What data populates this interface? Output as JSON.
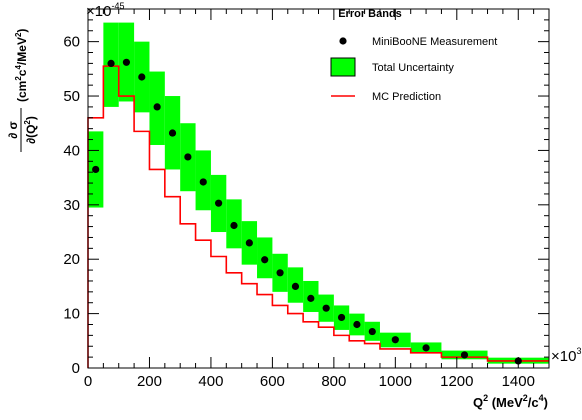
{
  "chart_data": {
    "type": "line",
    "title": "",
    "xlabel": {
      "base": "Q",
      "sup": "2",
      "unit_open": " (MeV",
      "unit_sup1": "2",
      "unit_mid": "/c",
      "unit_sup2": "4",
      "unit_close": ")"
    },
    "ylabel": {
      "frac_num": "∂ σ",
      "frac_den_open": "∂(Q",
      "frac_den_sup": "2",
      "frac_den_close": ")",
      "unit_open": " (cm",
      "unit_sup1": "2",
      "unit_mid1": "c",
      "unit_sup2": "4",
      "unit_mid2": "/MeV",
      "unit_sup3": "2",
      "unit_close": ")"
    },
    "x_exponent": {
      "base": "×10",
      "sup": "3"
    },
    "y_exponent": {
      "base": "×10",
      "sup": "-45"
    },
    "xlim": [
      0,
      1500
    ],
    "ylim": [
      0,
      66
    ],
    "x_ticks": [
      0,
      200,
      400,
      600,
      800,
      1000,
      1200,
      1400
    ],
    "y_ticks": [
      0,
      10,
      20,
      30,
      40,
      50,
      60
    ],
    "legend": {
      "title": "Error Bands",
      "position": "top-right",
      "entries": [
        "MiniBooNE Measurement",
        "Total Uncertainty",
        "MC Prediction"
      ]
    },
    "colors": {
      "band": "#00ff00",
      "mc": "#ff0000",
      "points": "#000000",
      "frame": "#000000"
    },
    "bins": [
      {
        "lo": 0,
        "hi": 50,
        "data": 36.5,
        "band_lo": 29.5,
        "band_hi": 43.5,
        "mc": 46.0
      },
      {
        "lo": 50,
        "hi": 100,
        "data": 56.0,
        "band_lo": 48.0,
        "band_hi": 63.5,
        "mc": 55.5
      },
      {
        "lo": 100,
        "hi": 150,
        "data": 56.2,
        "band_lo": 49.0,
        "band_hi": 63.5,
        "mc": 50.0
      },
      {
        "lo": 150,
        "hi": 200,
        "data": 53.5,
        "band_lo": 47.0,
        "band_hi": 60.0,
        "mc": 43.5
      },
      {
        "lo": 200,
        "hi": 250,
        "data": 48.0,
        "band_lo": 41.0,
        "band_hi": 54.5,
        "mc": 36.5
      },
      {
        "lo": 250,
        "hi": 300,
        "data": 43.2,
        "band_lo": 36.5,
        "band_hi": 50.0,
        "mc": 31.5
      },
      {
        "lo": 300,
        "hi": 350,
        "data": 38.8,
        "band_lo": 32.5,
        "band_hi": 45.0,
        "mc": 26.5
      },
      {
        "lo": 350,
        "hi": 400,
        "data": 34.2,
        "band_lo": 29.0,
        "band_hi": 40.0,
        "mc": 23.5
      },
      {
        "lo": 400,
        "hi": 450,
        "data": 30.3,
        "band_lo": 25.0,
        "band_hi": 35.5,
        "mc": 20.5
      },
      {
        "lo": 450,
        "hi": 500,
        "data": 26.2,
        "band_lo": 22.0,
        "band_hi": 31.0,
        "mc": 17.5
      },
      {
        "lo": 500,
        "hi": 550,
        "data": 23.0,
        "band_lo": 19.0,
        "band_hi": 27.0,
        "mc": 15.5
      },
      {
        "lo": 550,
        "hi": 600,
        "data": 19.9,
        "band_lo": 16.5,
        "band_hi": 24.0,
        "mc": 13.5
      },
      {
        "lo": 600,
        "hi": 650,
        "data": 17.5,
        "band_lo": 14.0,
        "band_hi": 21.0,
        "mc": 11.5
      },
      {
        "lo": 650,
        "hi": 700,
        "data": 15.0,
        "band_lo": 12.0,
        "band_hi": 18.5,
        "mc": 10.0
      },
      {
        "lo": 700,
        "hi": 750,
        "data": 12.8,
        "band_lo": 10.3,
        "band_hi": 16.0,
        "mc": 8.5
      },
      {
        "lo": 750,
        "hi": 800,
        "data": 11.0,
        "band_lo": 8.5,
        "band_hi": 13.5,
        "mc": 7.5
      },
      {
        "lo": 800,
        "hi": 850,
        "data": 9.3,
        "band_lo": 7.0,
        "band_hi": 11.5,
        "mc": 6.0
      },
      {
        "lo": 850,
        "hi": 900,
        "data": 8.0,
        "band_lo": 6.0,
        "band_hi": 10.0,
        "mc": 5.0
      },
      {
        "lo": 900,
        "hi": 950,
        "data": 6.7,
        "band_lo": 5.0,
        "band_hi": 8.5,
        "mc": 4.5
      },
      {
        "lo": 950,
        "hi": 1050,
        "data": 5.2,
        "band_lo": 3.8,
        "band_hi": 6.5,
        "mc": 3.5
      },
      {
        "lo": 1050,
        "hi": 1150,
        "data": 3.7,
        "band_lo": 2.8,
        "band_hi": 4.7,
        "mc": 2.8
      },
      {
        "lo": 1150,
        "hi": 1300,
        "data": 2.4,
        "band_lo": 1.6,
        "band_hi": 3.2,
        "mc": 2.0
      },
      {
        "lo": 1300,
        "hi": 1500,
        "data": 1.3,
        "band_lo": 0.8,
        "band_hi": 1.9,
        "mc": 1.3
      }
    ]
  }
}
